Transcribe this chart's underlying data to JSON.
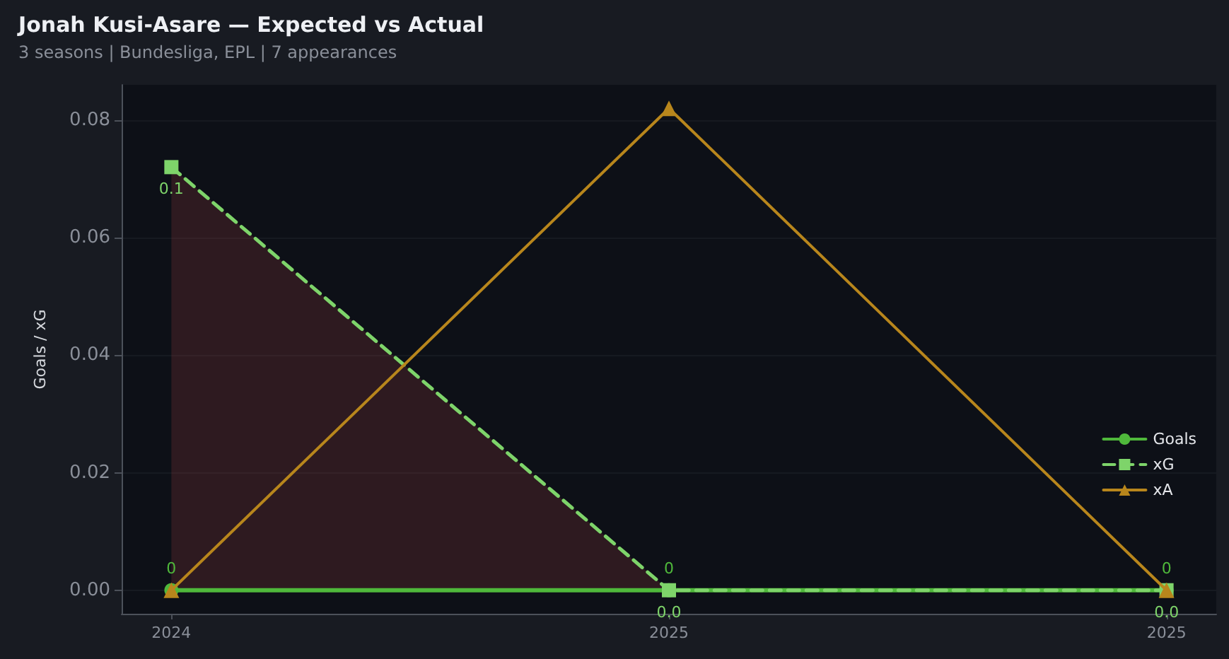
{
  "chart_data": {
    "type": "line",
    "title": "Jonah Kusi-Asare — Expected vs Actual",
    "subtitle": "3 seasons | Bundesliga, EPL | 7 appearances",
    "ylabel": "Goals / xG",
    "categories": [
      "2024",
      "2025",
      "2025"
    ],
    "series": [
      {
        "name": "Goals",
        "color": "#4fb83b",
        "values": [
          0,
          0,
          0
        ],
        "marker": "circle",
        "line_style": "solid",
        "value_labels": [
          "0",
          "0",
          "0"
        ]
      },
      {
        "name": "xG",
        "color": "#7ed46a",
        "values": [
          0.072,
          0,
          0
        ],
        "marker": "square",
        "line_style": "dashed",
        "value_labels": [
          "0.1",
          "0.0",
          "0.0"
        ],
        "lower": [
          0,
          0,
          0
        ],
        "upper": [
          0.072,
          0,
          0
        ]
      },
      {
        "name": "xA",
        "color": "#b8861c",
        "values": [
          0,
          0.082,
          0
        ],
        "marker": "triangle",
        "line_style": "solid"
      }
    ],
    "ylim": [
      -0.004,
      0.086
    ],
    "yticks": [
      {
        "value": 0,
        "label": "0.00"
      },
      0.02,
      0.04,
      0.06,
      0.08
    ],
    "grid": "y",
    "legend": "bottom right"
  }
}
